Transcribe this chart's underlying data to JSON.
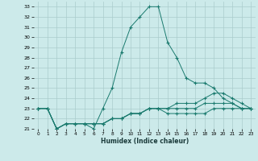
{
  "title": "",
  "xlabel": "Humidex (Indice chaleur)",
  "bg_color": "#cceaea",
  "line_color": "#1a7a6e",
  "grid_color": "#aacccc",
  "xlim": [
    -0.5,
    23.5
  ],
  "ylim": [
    21,
    33.5
  ],
  "yticks": [
    21,
    22,
    23,
    24,
    25,
    26,
    27,
    28,
    29,
    30,
    31,
    32,
    33
  ],
  "xticks": [
    0,
    1,
    2,
    3,
    4,
    5,
    6,
    7,
    8,
    9,
    10,
    11,
    12,
    13,
    14,
    15,
    16,
    17,
    18,
    19,
    20,
    21,
    22,
    23
  ],
  "series": [
    {
      "x": [
        0,
        1,
        2,
        3,
        4,
        5,
        6,
        7,
        8,
        9,
        10,
        11,
        12,
        13,
        14,
        15,
        16,
        17,
        18,
        19,
        20,
        21,
        22,
        23
      ],
      "y": [
        23,
        23,
        21,
        21.5,
        21.5,
        21.5,
        21,
        23,
        25,
        28.5,
        31,
        32,
        33,
        33,
        29.5,
        28,
        26,
        25.5,
        25.5,
        25,
        24,
        23.5,
        23,
        23
      ]
    },
    {
      "x": [
        0,
        1,
        2,
        3,
        4,
        5,
        6,
        7,
        8,
        9,
        10,
        11,
        12,
        13,
        14,
        15,
        16,
        17,
        18,
        19,
        20,
        21,
        22,
        23
      ],
      "y": [
        23,
        23,
        21,
        21.5,
        21.5,
        21.5,
        21.5,
        21.5,
        22,
        22,
        22.5,
        22.5,
        23,
        23,
        23,
        23.5,
        23.5,
        23.5,
        24,
        24.5,
        24.5,
        24,
        23.5,
        23
      ]
    },
    {
      "x": [
        0,
        1,
        2,
        3,
        4,
        5,
        6,
        7,
        8,
        9,
        10,
        11,
        12,
        13,
        14,
        15,
        16,
        17,
        18,
        19,
        20,
        21,
        22,
        23
      ],
      "y": [
        23,
        23,
        21,
        21.5,
        21.5,
        21.5,
        21.5,
        21.5,
        22,
        22,
        22.5,
        22.5,
        23,
        23,
        23,
        23,
        23,
        23,
        23.5,
        23.5,
        23.5,
        23.5,
        23,
        23
      ]
    },
    {
      "x": [
        0,
        1,
        2,
        3,
        4,
        5,
        6,
        7,
        8,
        9,
        10,
        11,
        12,
        13,
        14,
        15,
        16,
        17,
        18,
        19,
        20,
        21,
        22,
        23
      ],
      "y": [
        23,
        23,
        21,
        21.5,
        21.5,
        21.5,
        21.5,
        21.5,
        22,
        22,
        22.5,
        22.5,
        23,
        23,
        22.5,
        22.5,
        22.5,
        22.5,
        22.5,
        23,
        23,
        23,
        23,
        23
      ]
    }
  ]
}
